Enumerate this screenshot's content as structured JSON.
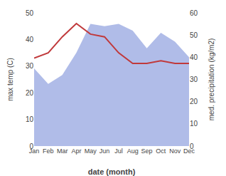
{
  "chart_data": {
    "type": "line",
    "x_label": "date (month)",
    "y_label": "max temp (C)",
    "y2_label": "med. precipitation (kg/m2)",
    "categories": [
      "Jan",
      "Feb",
      "Mar",
      "Apr",
      "May",
      "Jun",
      "Jul",
      "Aug",
      "Sep",
      "Oct",
      "Nov",
      "Dec"
    ],
    "series": [
      {
        "type": "area",
        "axis": "y2",
        "color": "#b0bce8",
        "values": [
          35,
          28,
          32,
          42,
          55,
          54,
          55,
          52,
          44,
          51,
          47,
          40
        ]
      },
      {
        "type": "line",
        "color": "#c0393b",
        "values": [
          33,
          35,
          41,
          46,
          42,
          41,
          35,
          31,
          31,
          32,
          31,
          31
        ]
      }
    ],
    "ylim": [
      0,
      50
    ],
    "yticks": [
      0,
      10,
      20,
      30,
      40,
      50
    ],
    "y2lim": [
      0,
      60
    ],
    "y2ticks": [
      0,
      10,
      20,
      30,
      40,
      50,
      60
    ],
    "grid": false
  }
}
